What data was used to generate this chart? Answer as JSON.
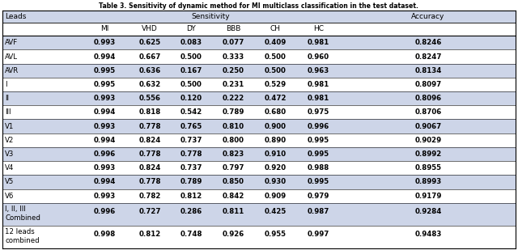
{
  "title": "Table 3. Sensitivity of dynamic method for MI multiclass classification in the test dataset.",
  "sub_headers": [
    "MI",
    "VHD",
    "DY",
    "BBB",
    "CH",
    "HC"
  ],
  "rows": [
    {
      "lead": "AVF",
      "values": [
        "0.993",
        "0.625",
        "0.083",
        "0.077",
        "0.409",
        "0.981",
        "0.8246"
      ],
      "tall": false
    },
    {
      "lead": "AVL",
      "values": [
        "0.994",
        "0.667",
        "0.500",
        "0.333",
        "0.500",
        "0.960",
        "0.8247"
      ],
      "tall": false
    },
    {
      "lead": "AVR",
      "values": [
        "0.995",
        "0.636",
        "0.167",
        "0.250",
        "0.500",
        "0.963",
        "0.8134"
      ],
      "tall": false
    },
    {
      "lead": "I",
      "values": [
        "0.995",
        "0.632",
        "0.500",
        "0.231",
        "0.529",
        "0.981",
        "0.8097"
      ],
      "tall": false
    },
    {
      "lead": "II",
      "values": [
        "0.993",
        "0.556",
        "0.120",
        "0.222",
        "0.472",
        "0.981",
        "0.8096"
      ],
      "tall": false
    },
    {
      "lead": "III",
      "values": [
        "0.994",
        "0.818",
        "0.542",
        "0.789",
        "0.680",
        "0.975",
        "0.8706"
      ],
      "tall": false
    },
    {
      "lead": "V1",
      "values": [
        "0.993",
        "0.778",
        "0.765",
        "0.810",
        "0.900",
        "0.996",
        "0.9067"
      ],
      "tall": false
    },
    {
      "lead": "V2",
      "values": [
        "0.994",
        "0.824",
        "0.737",
        "0.800",
        "0.890",
        "0.995",
        "0.9029"
      ],
      "tall": false
    },
    {
      "lead": "V3",
      "values": [
        "0.996",
        "0.778",
        "0.778",
        "0.823",
        "0.910",
        "0.995",
        "0.8992"
      ],
      "tall": false
    },
    {
      "lead": "V4",
      "values": [
        "0.993",
        "0.824",
        "0.737",
        "0.797",
        "0.920",
        "0.988",
        "0.8955"
      ],
      "tall": false
    },
    {
      "lead": "V5",
      "values": [
        "0.994",
        "0.778",
        "0.789",
        "0.850",
        "0.930",
        "0.995",
        "0.8993"
      ],
      "tall": false
    },
    {
      "lead": "V6",
      "values": [
        "0.993",
        "0.782",
        "0.812",
        "0.842",
        "0.909",
        "0.979",
        "0.9179"
      ],
      "tall": false
    },
    {
      "lead": "I, II, III\nCombined",
      "values": [
        "0.996",
        "0.727",
        "0.286",
        "0.811",
        "0.425",
        "0.987",
        "0.9284"
      ],
      "tall": true
    },
    {
      "lead": "12 leads\ncombined",
      "values": [
        "0.998",
        "0.812",
        "0.748",
        "0.926",
        "0.955",
        "0.997",
        "0.9483"
      ],
      "tall": true
    }
  ],
  "stripe_color": "#cdd5e8",
  "white_color": "#ffffff",
  "border_color": "#000000",
  "text_color": "#000000",
  "col_starts": [
    0.005,
    0.155,
    0.248,
    0.33,
    0.408,
    0.492,
    0.572,
    0.658
  ],
  "col_ends": [
    0.155,
    0.248,
    0.33,
    0.408,
    0.492,
    0.572,
    0.658,
    0.995
  ]
}
